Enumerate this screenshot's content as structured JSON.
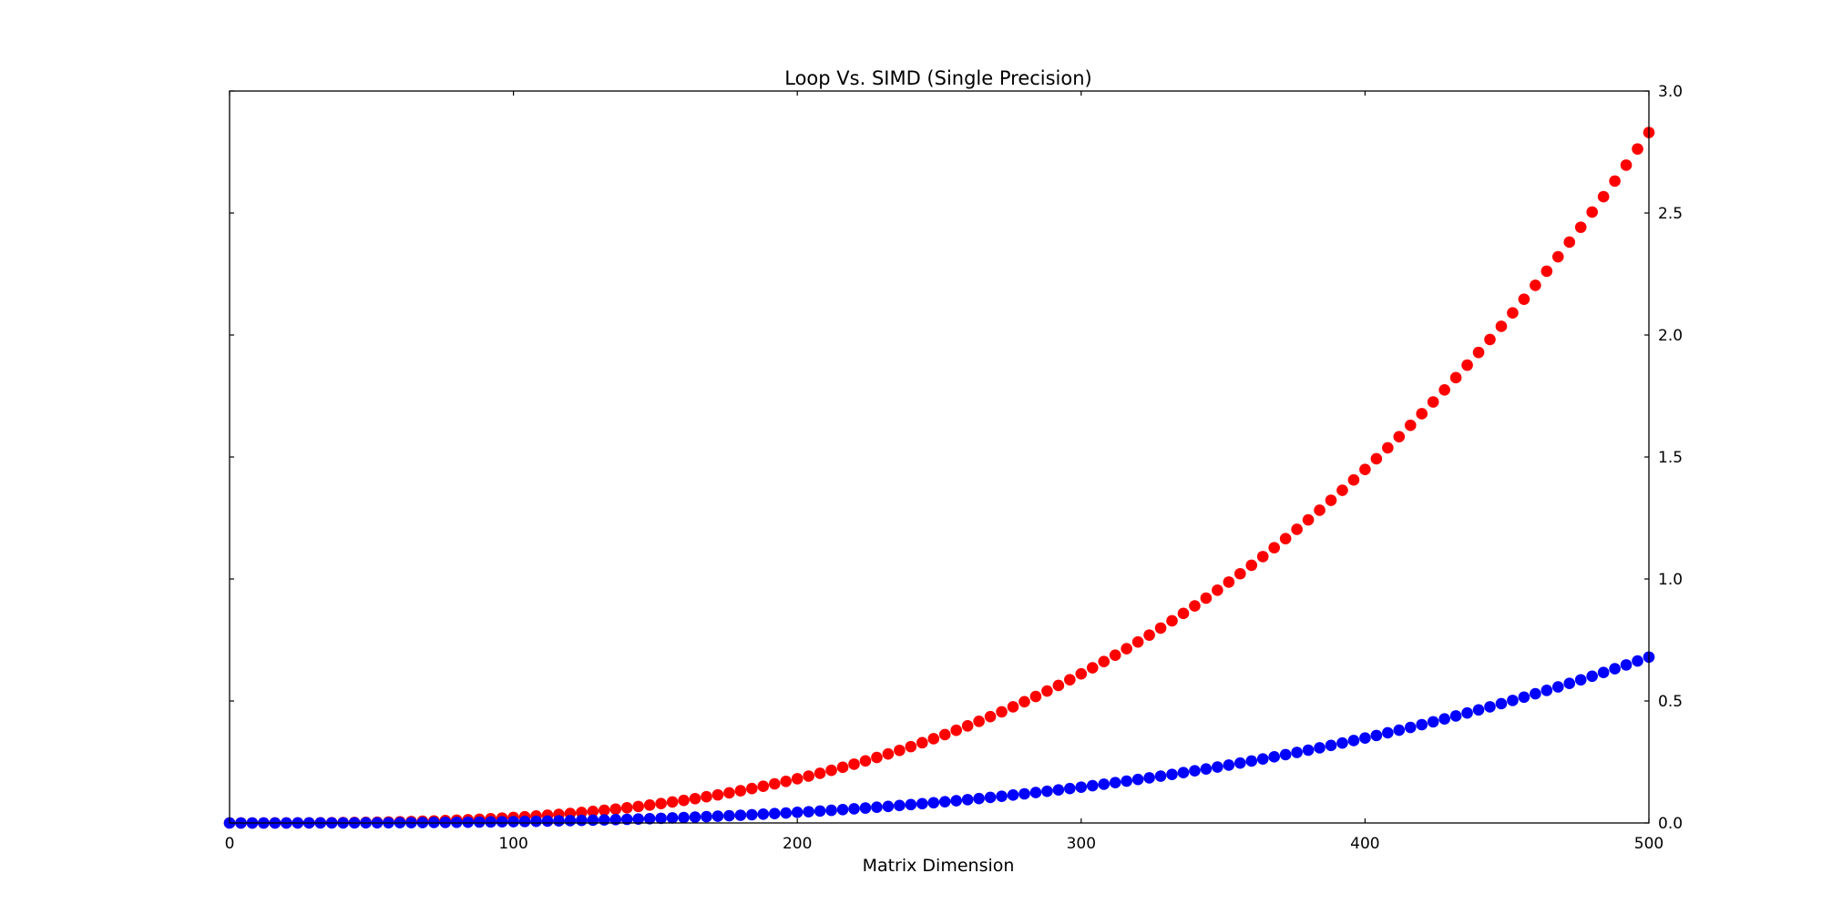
{
  "chart_data": {
    "type": "scatter",
    "title": "Loop Vs. SIMD (Single Precision)",
    "xlabel": "Matrix Dimension",
    "ylabel": "",
    "xlim": [
      0,
      500
    ],
    "ylim": [
      0,
      3.0
    ],
    "x_ticks": [
      "0",
      "100",
      "200",
      "300",
      "400",
      "500"
    ],
    "y_ticks": [
      "0.0",
      "0.5",
      "1.0",
      "1.5",
      "2.0",
      "2.5",
      "3.0"
    ],
    "y_axis_side": "right",
    "grid": false,
    "legend": "none",
    "x_start": 0,
    "x_step": 4,
    "series": [
      {
        "color": "#ff0000",
        "growth": "cubic",
        "x_end": 500,
        "y_end": 2.83
      },
      {
        "color": "#0000ff",
        "growth": "cubic",
        "x_end": 500,
        "y_end": 0.68
      }
    ]
  }
}
